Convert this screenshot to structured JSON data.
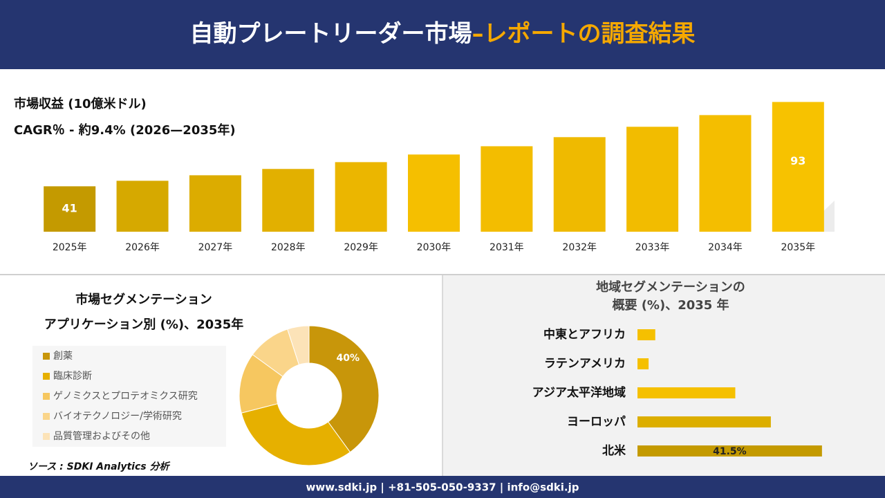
{
  "header": {
    "title": "自動プレートリーダー市場",
    "subtitle": "–レポートの調査結果"
  },
  "chart_data": [
    {
      "type": "bar",
      "title": "市場収益 (10億米ドル)",
      "subtitle": "CAGR％ - 約9.4% (2026—2035年)",
      "categories": [
        "2025年",
        "2026年",
        "2027年",
        "2028年",
        "2029年",
        "2030年",
        "2031年",
        "2032年",
        "2033年",
        "2034年",
        "2035年"
      ],
      "values": [
        41,
        44.4,
        47.8,
        51.7,
        55.9,
        60.6,
        65.7,
        71.3,
        77.7,
        84.9,
        93
      ],
      "colors": [
        "#c49a00",
        "#d6a900",
        "#dcac00",
        "#e2b000",
        "#ebb600",
        "#f5bf00",
        "#f3bd00",
        "#efba00",
        "#f2bc00",
        "#f4be00",
        "#f7c200"
      ],
      "ylim": [
        13,
        100
      ]
    },
    {
      "type": "donut",
      "title": [
        "市場セグメンテーション",
        "アプリケーション別 (%)、2035年"
      ],
      "categories": [
        "創薬",
        "臨床診断",
        "ゲノミクスとプロテオミクス研究",
        "バイオテクノロジー/学術研究",
        "品質管理およびその他"
      ],
      "values": [
        40,
        31,
        14,
        10,
        5
      ],
      "value_labels": [
        "40%",
        null,
        null,
        null,
        null
      ],
      "colors": [
        "#c8960a",
        "#e6b000",
        "#f6c760",
        "#fad58a",
        "#fce3b8"
      ]
    },
    {
      "type": "hbar",
      "title": [
        "地域セグメンテーションの",
        "概要 (%)、2035 年"
      ],
      "categories": [
        "中東とアフリカ",
        "ラテンアメリカ",
        "アジア太平洋地域",
        "ヨーロッパ",
        "北米"
      ],
      "values": [
        4,
        2.5,
        22,
        30,
        41.5
      ],
      "value_labels": [
        null,
        null,
        null,
        null,
        "41.5%"
      ],
      "colors": [
        "#f5c000",
        "#f5c000",
        "#f5c000",
        "#dcae00",
        "#c49a00"
      ],
      "xlim": [
        0,
        50
      ]
    }
  ],
  "source": "ソース : SDKI Analytics 分析",
  "footer": "www.sdki.jp | +81-505-050-9337 | info@sdki.jp"
}
